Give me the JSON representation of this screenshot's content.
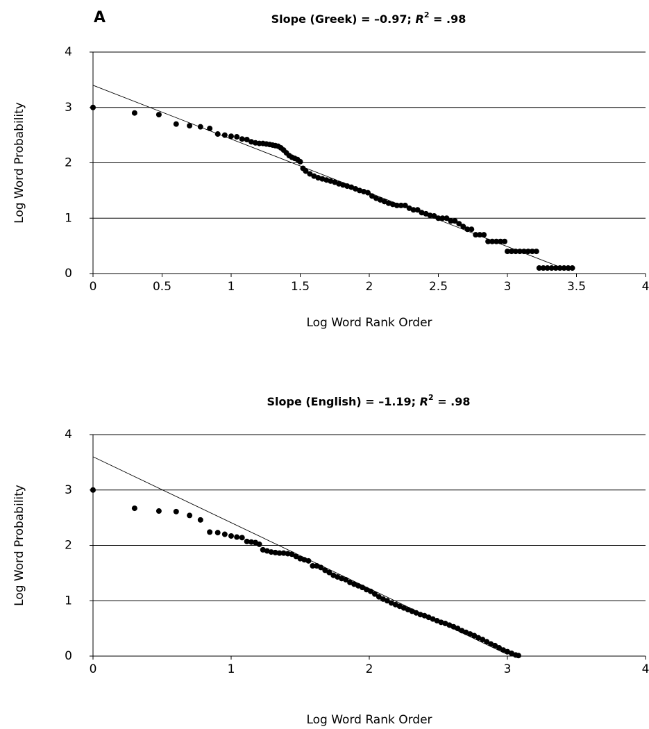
{
  "chart_data": [
    {
      "type": "scatter",
      "panel_label": "A",
      "title": [
        "Slope (Greek) = –0.97; ",
        "R",
        "2",
        " = .98"
      ],
      "x_label": "Log Word Rank Order",
      "y_label": "Log Word Probability",
      "xlim": [
        0,
        4
      ],
      "xticks": [
        0,
        0.5,
        1,
        1.5,
        2,
        2.5,
        3,
        3.5,
        4
      ],
      "ylim": [
        0,
        4
      ],
      "yticks": [
        0,
        1,
        2,
        3,
        4
      ],
      "grid": true,
      "color": "#000000",
      "x": [
        0,
        0.301,
        0.477,
        0.602,
        0.699,
        0.778,
        0.845,
        0.903,
        0.954,
        1.0,
        1.041,
        1.079,
        1.114,
        1.146,
        1.176,
        1.204,
        1.23,
        1.255,
        1.279,
        1.3,
        1.32,
        1.34,
        1.36,
        1.38,
        1.4,
        1.42,
        1.44,
        1.46,
        1.48,
        1.5,
        1.52,
        1.54,
        1.57,
        1.6,
        1.63,
        1.66,
        1.69,
        1.72,
        1.75,
        1.78,
        1.81,
        1.84,
        1.87,
        1.9,
        1.93,
        1.96,
        1.99,
        2.02,
        2.05,
        2.08,
        2.11,
        2.14,
        2.17,
        2.2,
        2.23,
        2.26,
        2.29,
        2.32,
        2.35,
        2.38,
        2.41,
        2.44,
        2.47,
        2.5,
        2.53,
        2.56,
        2.59,
        2.62,
        2.65,
        2.68,
        2.71,
        2.74,
        2.77,
        2.8,
        2.83,
        2.86,
        2.89,
        2.92,
        2.95,
        2.98,
        3.0,
        3.03,
        3.06,
        3.09,
        3.12,
        3.15,
        3.18,
        3.21,
        3.23,
        3.26,
        3.29,
        3.32,
        3.35,
        3.38,
        3.41,
        3.44,
        3.47
      ],
      "values": [
        3.0,
        2.9,
        2.87,
        2.7,
        2.67,
        2.65,
        2.62,
        2.52,
        2.5,
        2.48,
        2.47,
        2.43,
        2.42,
        2.38,
        2.36,
        2.35,
        2.35,
        2.34,
        2.33,
        2.32,
        2.31,
        2.3,
        2.27,
        2.23,
        2.18,
        2.13,
        2.1,
        2.08,
        2.06,
        2.02,
        1.9,
        1.85,
        1.8,
        1.76,
        1.73,
        1.71,
        1.69,
        1.67,
        1.65,
        1.62,
        1.6,
        1.58,
        1.56,
        1.53,
        1.5,
        1.48,
        1.46,
        1.4,
        1.36,
        1.33,
        1.3,
        1.27,
        1.25,
        1.23,
        1.23,
        1.23,
        1.18,
        1.15,
        1.15,
        1.1,
        1.08,
        1.05,
        1.04,
        1.0,
        1.0,
        1.0,
        0.95,
        0.95,
        0.9,
        0.85,
        0.8,
        0.8,
        0.7,
        0.7,
        0.7,
        0.58,
        0.58,
        0.58,
        0.58,
        0.58,
        0.4,
        0.4,
        0.4,
        0.4,
        0.4,
        0.4,
        0.4,
        0.4,
        0.1,
        0.1,
        0.1,
        0.1,
        0.1,
        0.1,
        0.1,
        0.1,
        0.1
      ],
      "trendline": {
        "x": [
          0,
          3.45
        ],
        "y": [
          3.4,
          0.05
        ]
      }
    },
    {
      "type": "scatter",
      "title": [
        "Slope (English) = –1.19; ",
        "R",
        "2",
        " = .98"
      ],
      "x_label": "Log Word Rank Order",
      "y_label": "Log Word Probability",
      "xlim": [
        0,
        4
      ],
      "xticks": [
        0,
        1,
        2,
        3,
        4
      ],
      "ylim": [
        0,
        4
      ],
      "yticks": [
        0,
        1,
        2,
        3,
        4
      ],
      "grid": true,
      "color": "#000000",
      "x": [
        0,
        0.301,
        0.477,
        0.602,
        0.699,
        0.778,
        0.845,
        0.903,
        0.954,
        1.0,
        1.041,
        1.079,
        1.114,
        1.146,
        1.176,
        1.204,
        1.23,
        1.26,
        1.29,
        1.32,
        1.35,
        1.38,
        1.41,
        1.44,
        1.47,
        1.5,
        1.53,
        1.56,
        1.59,
        1.62,
        1.65,
        1.68,
        1.71,
        1.74,
        1.77,
        1.8,
        1.83,
        1.86,
        1.89,
        1.92,
        1.95,
        1.98,
        2.01,
        2.04,
        2.07,
        2.1,
        2.13,
        2.16,
        2.19,
        2.22,
        2.25,
        2.28,
        2.31,
        2.34,
        2.37,
        2.4,
        2.43,
        2.46,
        2.49,
        2.52,
        2.55,
        2.58,
        2.61,
        2.64,
        2.67,
        2.7,
        2.73,
        2.76,
        2.79,
        2.82,
        2.85,
        2.88,
        2.91,
        2.94,
        2.97,
        3.0,
        3.03,
        3.06,
        3.08
      ],
      "values": [
        3.0,
        2.67,
        2.62,
        2.61,
        2.54,
        2.46,
        2.24,
        2.23,
        2.2,
        2.17,
        2.15,
        2.14,
        2.07,
        2.06,
        2.05,
        2.02,
        1.92,
        1.9,
        1.88,
        1.87,
        1.86,
        1.86,
        1.85,
        1.84,
        1.8,
        1.76,
        1.74,
        1.72,
        1.63,
        1.63,
        1.6,
        1.55,
        1.51,
        1.46,
        1.43,
        1.4,
        1.38,
        1.33,
        1.3,
        1.27,
        1.24,
        1.2,
        1.17,
        1.12,
        1.07,
        1.03,
        1.0,
        0.96,
        0.93,
        0.9,
        0.87,
        0.84,
        0.81,
        0.78,
        0.75,
        0.73,
        0.7,
        0.67,
        0.64,
        0.61,
        0.59,
        0.56,
        0.53,
        0.5,
        0.46,
        0.43,
        0.4,
        0.37,
        0.33,
        0.3,
        0.26,
        0.22,
        0.19,
        0.15,
        0.11,
        0.08,
        0.05,
        0.02,
        0.01
      ],
      "trendline": {
        "x": [
          0,
          3.0
        ],
        "y": [
          3.6,
          0.03
        ]
      }
    }
  ]
}
